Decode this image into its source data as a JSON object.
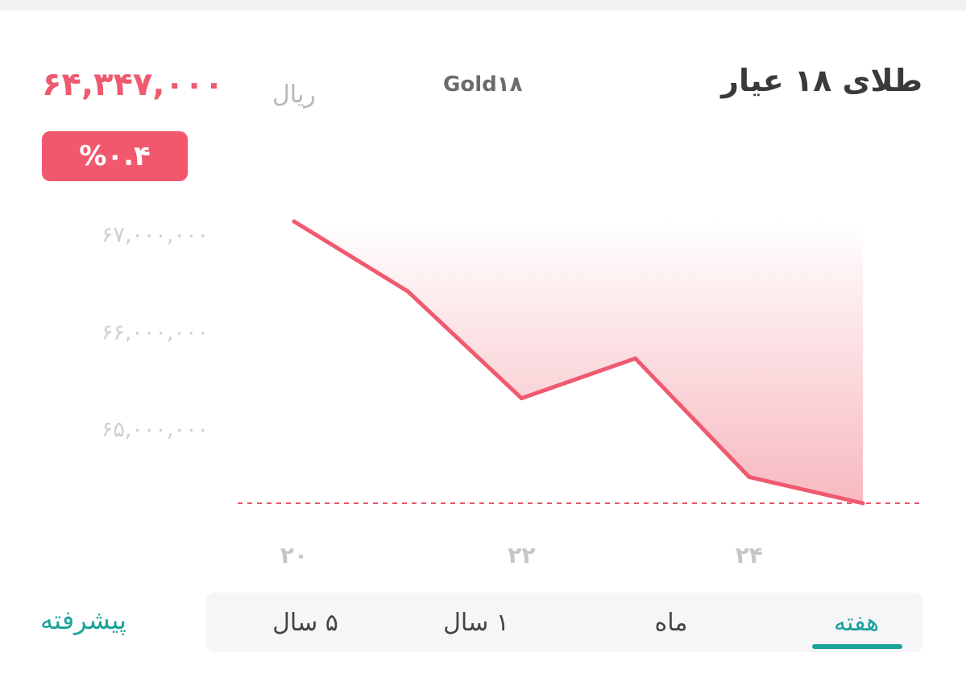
{
  "header": {
    "title": "طلای ۱۸ عیار",
    "symbol": "Gold۱۸",
    "currency": "ریال",
    "price": "۶۴,۳۴۷,۰۰۰",
    "change": "%۰.۴"
  },
  "colors": {
    "accent": "#f05a70",
    "positive_accent": "#1aa39a",
    "badge": "#f2586d"
  },
  "chart_data": {
    "type": "area",
    "x": [
      20,
      20.5,
      21,
      21.5,
      22,
      22.5,
      23,
      23.5,
      24,
      24.5,
      25
    ],
    "points": [
      {
        "x": 20,
        "y": 67130000
      },
      {
        "x": 21,
        "y": 66410000
      },
      {
        "x": 22,
        "y": 65310000
      },
      {
        "x": 23,
        "y": 65720000
      },
      {
        "x": 24,
        "y": 64500000
      },
      {
        "x": 25,
        "y": 64230000
      }
    ],
    "ylim": [
      64230000,
      67130000
    ],
    "yticks": [
      {
        "value": 67000000,
        "label": "۶۷,۰۰۰,۰۰۰"
      },
      {
        "value": 66000000,
        "label": "۶۶,۰۰۰,۰۰۰"
      },
      {
        "value": 65000000,
        "label": "۶۵,۰۰۰,۰۰۰"
      }
    ],
    "xticks": [
      {
        "value": 20,
        "label": "۲۰"
      },
      {
        "value": 22,
        "label": "۲۲"
      },
      {
        "value": 24,
        "label": "۲۴"
      }
    ],
    "reference_line": 64230000,
    "grid": false
  },
  "tabs": [
    {
      "label": "هفته",
      "active": true
    },
    {
      "label": "ماه",
      "active": false
    },
    {
      "label": "۱ سال",
      "active": false
    },
    {
      "label": "۵ سال",
      "active": false
    }
  ],
  "advanced_label": "پیشرفته"
}
